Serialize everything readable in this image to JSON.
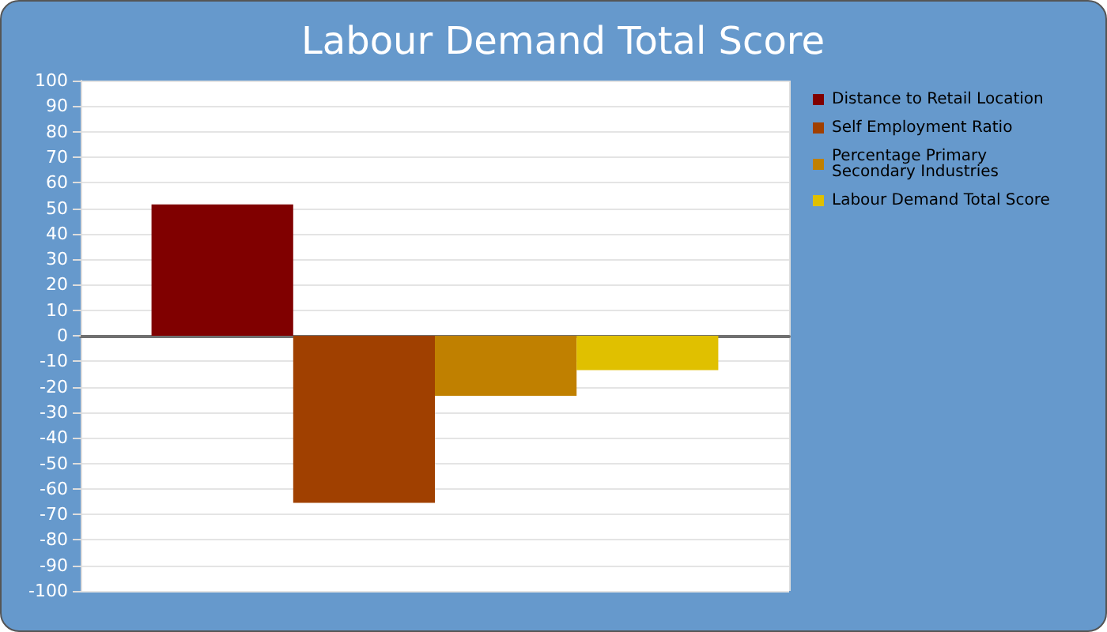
{
  "chart_data": {
    "type": "bar",
    "title": "Labour Demand Total Score",
    "categories": [
      null
    ],
    "series": [
      {
        "name": "Distance to Retail Location",
        "color": "#800000",
        "values": [
          51.5
        ]
      },
      {
        "name": "Self Employment Ratio",
        "color": "#a04000",
        "values": [
          -65.5
        ]
      },
      {
        "name": "Percentage Primary Secondary Industries",
        "color": "#c08000",
        "values": [
          -23.5
        ]
      },
      {
        "name": "Labour Demand Total Score",
        "color": "#e0c000",
        "values": [
          -13.5
        ]
      }
    ],
    "ylim": [
      -100,
      100
    ],
    "yticks": [
      -100,
      -90,
      -80,
      -70,
      -60,
      -50,
      -40,
      -30,
      -20,
      -10,
      0,
      10,
      20,
      30,
      40,
      50,
      60,
      70,
      80,
      90,
      100
    ],
    "grid": true,
    "legend": "top right"
  }
}
